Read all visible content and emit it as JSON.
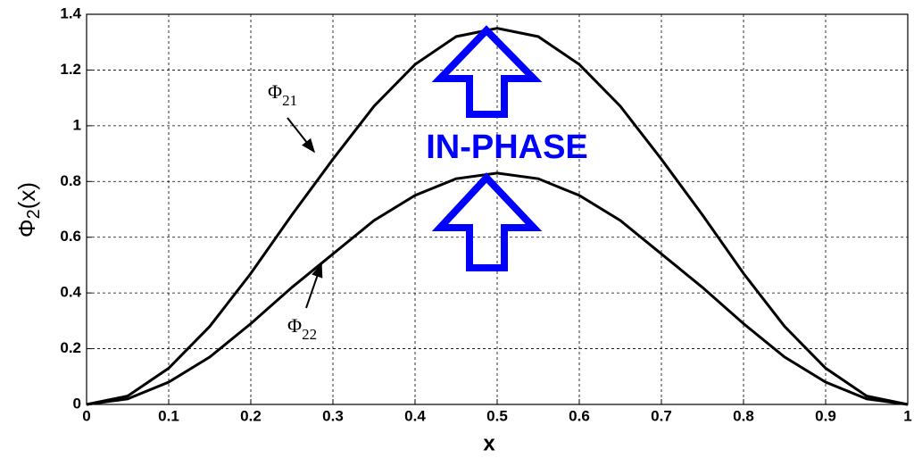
{
  "chart_data": {
    "type": "line",
    "xlabel": "x",
    "ylabel": {
      "symbol": "Φ",
      "subscript": "2",
      "suffix": "(x)"
    },
    "x": [
      0,
      0.05,
      0.1,
      0.15,
      0.2,
      0.25,
      0.3,
      0.35,
      0.4,
      0.45,
      0.5,
      0.55,
      0.6,
      0.65,
      0.7,
      0.75,
      0.8,
      0.85,
      0.9,
      0.95,
      1
    ],
    "series": [
      {
        "color": "#000000",
        "values": [
          0,
          0.03,
          0.13,
          0.28,
          0.47,
          0.68,
          0.88,
          1.07,
          1.22,
          1.32,
          1.35,
          1.32,
          1.22,
          1.07,
          0.88,
          0.68,
          0.47,
          0.28,
          0.13,
          0.03,
          0
        ]
      },
      {
        "color": "#000000",
        "values": [
          0,
          0.02,
          0.08,
          0.17,
          0.29,
          0.42,
          0.54,
          0.66,
          0.75,
          0.81,
          0.83,
          0.81,
          0.75,
          0.66,
          0.54,
          0.42,
          0.29,
          0.17,
          0.08,
          0.02,
          0
        ]
      }
    ],
    "annotations": [
      {
        "symbol": "Φ",
        "subscript": "21"
      },
      {
        "symbol": "Φ",
        "subscript": "22"
      },
      {
        "text": "IN-PHASE",
        "color": "#0000ff"
      }
    ],
    "xlim": [
      0,
      1
    ],
    "xticks": [
      0,
      0.1,
      0.2,
      0.3,
      0.4,
      0.5,
      0.6,
      0.7,
      0.8,
      0.9,
      1
    ],
    "ylim": [
      0,
      1.4
    ],
    "yticks": [
      0,
      0.2,
      0.4,
      0.6,
      0.8,
      1,
      1.2,
      1.4
    ],
    "grid": true
  }
}
